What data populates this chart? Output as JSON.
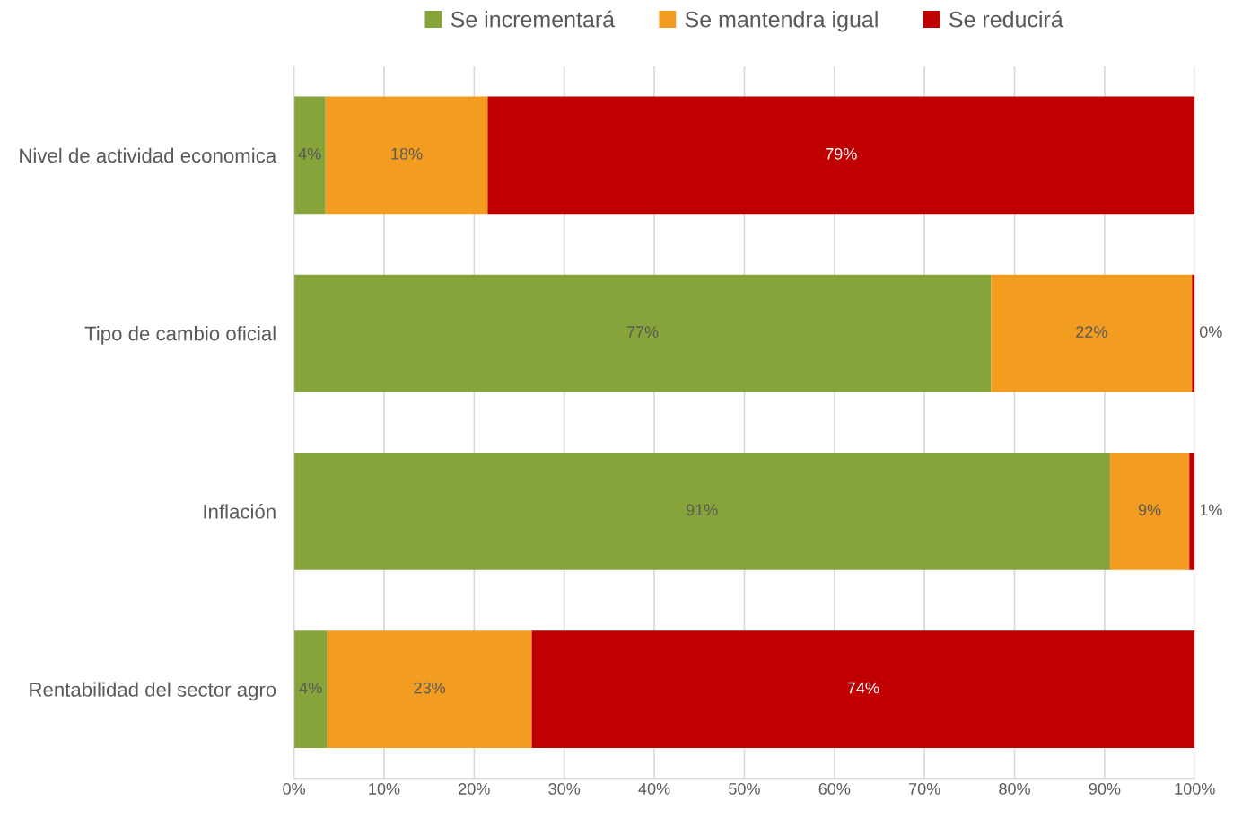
{
  "chart_data": {
    "type": "bar",
    "orientation": "horizontal",
    "stacked": true,
    "categories": [
      "Nivel de actividad economica",
      "Tipo de cambio oficial",
      "Inflación",
      "Rentabilidad del sector agro"
    ],
    "series": [
      {
        "name": "Se incrementará",
        "color": "#86a43a",
        "values": [
          3.5,
          77.4,
          90.6,
          3.7
        ],
        "value_labels": [
          "4%",
          "77%",
          "91%",
          "4%"
        ]
      },
      {
        "name": "Se mantendra igual",
        "color": "#f29c20",
        "values": [
          18,
          22.3,
          8.8,
          22.7
        ],
        "value_labels": [
          "18%",
          "22%",
          "9%",
          "23%"
        ]
      },
      {
        "name": "Se reducirá",
        "color": "#c00000",
        "values": [
          78.5,
          0.3,
          0.6,
          73.6
        ],
        "value_labels": [
          "79%",
          "0%",
          "1%",
          "74%"
        ]
      }
    ],
    "xlim": [
      0,
      100
    ],
    "xticks": [
      {
        "value": 0,
        "label": "0%"
      },
      {
        "value": 10,
        "label": "10%"
      },
      {
        "value": 20,
        "label": "20%"
      },
      {
        "value": 30,
        "label": "30%"
      },
      {
        "value": 40,
        "label": "40%"
      },
      {
        "value": 50,
        "label": "50%"
      },
      {
        "value": 60,
        "label": "60%"
      },
      {
        "value": 70,
        "label": "70%"
      },
      {
        "value": 80,
        "label": "80%"
      },
      {
        "value": 90,
        "label": "90%"
      },
      {
        "value": 100,
        "label": "100%"
      }
    ],
    "grid": "x",
    "legend": "top"
  }
}
